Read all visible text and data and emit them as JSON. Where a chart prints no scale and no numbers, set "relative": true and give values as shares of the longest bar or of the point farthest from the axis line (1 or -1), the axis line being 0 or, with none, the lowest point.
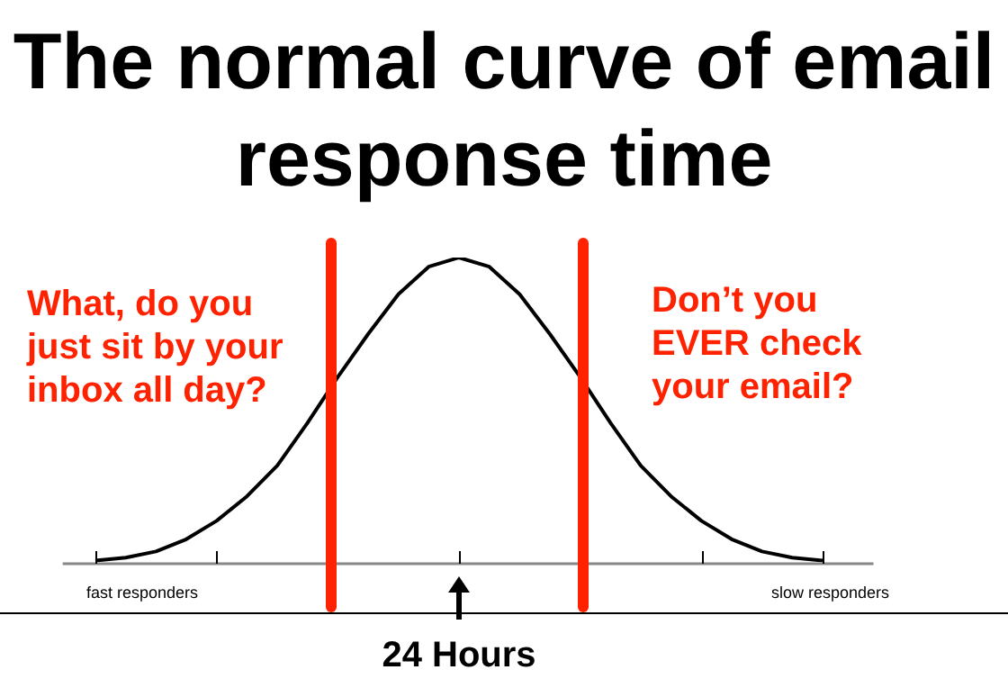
{
  "chart_data": {
    "type": "line",
    "title": "The normal curve of email response time",
    "relative": true,
    "categories": [
      null,
      null,
      null,
      null,
      null,
      null,
      null,
      null,
      null,
      null,
      null,
      null,
      null,
      null,
      null,
      null,
      null,
      null,
      null,
      null,
      null,
      null,
      null,
      null,
      null
    ],
    "series": [
      {
        "color": "#000000",
        "values": [
          0.01,
          0.02,
          0.04,
          0.08,
          0.14,
          0.22,
          0.32,
          0.46,
          0.61,
          0.75,
          0.88,
          0.97,
          1,
          0.97,
          0.88,
          0.75,
          0.61,
          0.46,
          0.32,
          0.22,
          0.14,
          0.08,
          0.04,
          0.02,
          0.01
        ]
      }
    ],
    "annotations": [
      "What, do you just sit by your inbox all day?",
      "Don’t you EVER check your email?",
      "fast responders",
      "slow responders",
      "24 Hours"
    ],
    "grid": false,
    "legend": false
  }
}
